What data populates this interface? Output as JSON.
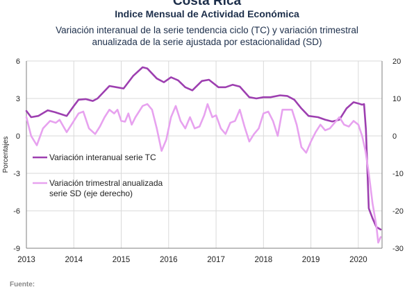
{
  "header": {
    "top_title": "Costa Rica",
    "title": "Indice Mensual de  Actividad Económica",
    "subtitle_line1": "Variación interanual de la serie tendencia ciclo (TC) y variación trimestral",
    "subtitle_line2": "anualizada de la serie ajustada por estacionalidad (SD)"
  },
  "footer": {
    "source_label": "Fuente:"
  },
  "colors": {
    "series1": "#9d3fb0",
    "series2": "#e7a2ef",
    "grid": "#d9d9d9",
    "axis": "#7f7f7f"
  },
  "chart_data": {
    "type": "line",
    "ylabel": "Porcentajes",
    "ylim": [
      -9,
      6
    ],
    "ylim_right": [
      -30,
      20
    ],
    "yticks": [
      6,
      3,
      0,
      -3,
      -6,
      -9
    ],
    "yticks_right": [
      20,
      10,
      0,
      -10,
      -20,
      -30
    ],
    "xlim": [
      2013.0,
      2020.5
    ],
    "xticks": [
      "2013",
      "2014",
      "2015",
      "2016",
      "2017",
      "2018",
      "2019",
      "2020"
    ],
    "grid": true,
    "legend_position": "left-center",
    "series": [
      {
        "name": "Variación interanual serie TC",
        "axis": "left",
        "points": [
          [
            2013.0,
            2.0
          ],
          [
            2013.1,
            1.5
          ],
          [
            2013.25,
            1.6
          ],
          [
            2013.45,
            2.05
          ],
          [
            2013.6,
            1.9
          ],
          [
            2013.85,
            1.6
          ],
          [
            2014.0,
            2.4
          ],
          [
            2014.1,
            2.9
          ],
          [
            2014.25,
            2.95
          ],
          [
            2014.4,
            2.8
          ],
          [
            2014.5,
            3.0
          ],
          [
            2014.75,
            4.0
          ],
          [
            2014.9,
            3.9
          ],
          [
            2015.05,
            3.8
          ],
          [
            2015.25,
            4.8
          ],
          [
            2015.45,
            5.5
          ],
          [
            2015.55,
            5.4
          ],
          [
            2015.75,
            4.6
          ],
          [
            2015.9,
            4.3
          ],
          [
            2016.05,
            4.7
          ],
          [
            2016.2,
            4.45
          ],
          [
            2016.35,
            3.9
          ],
          [
            2016.5,
            3.65
          ],
          [
            2016.7,
            4.4
          ],
          [
            2016.85,
            4.5
          ],
          [
            2017.05,
            3.9
          ],
          [
            2017.2,
            3.9
          ],
          [
            2017.35,
            4.1
          ],
          [
            2017.5,
            3.95
          ],
          [
            2017.7,
            3.1
          ],
          [
            2017.85,
            3.0
          ],
          [
            2018.0,
            3.1
          ],
          [
            2018.15,
            3.1
          ],
          [
            2018.35,
            3.25
          ],
          [
            2018.5,
            3.2
          ],
          [
            2018.65,
            2.9
          ],
          [
            2018.8,
            2.2
          ],
          [
            2018.95,
            1.6
          ],
          [
            2019.15,
            1.5
          ],
          [
            2019.3,
            1.3
          ],
          [
            2019.45,
            1.15
          ],
          [
            2019.6,
            1.3
          ],
          [
            2019.75,
            2.2
          ],
          [
            2019.9,
            2.7
          ],
          [
            2020.0,
            2.6
          ],
          [
            2020.08,
            2.5
          ],
          [
            2020.12,
            2.55
          ],
          [
            2020.16,
            0.5
          ],
          [
            2020.22,
            -5.8
          ],
          [
            2020.3,
            -6.6
          ],
          [
            2020.38,
            -7.3
          ],
          [
            2020.47,
            -7.5
          ]
        ]
      },
      {
        "name": "Variación trimestral anualizada serie SD (eje derecho)",
        "axis": "right",
        "points": [
          [
            2013.0,
            5.0
          ],
          [
            2013.1,
            0.0
          ],
          [
            2013.22,
            -2.5
          ],
          [
            2013.35,
            2.0
          ],
          [
            2013.5,
            4.0
          ],
          [
            2013.62,
            3.5
          ],
          [
            2013.7,
            4.3
          ],
          [
            2013.85,
            1.0
          ],
          [
            2013.95,
            3.0
          ],
          [
            2014.1,
            6.0
          ],
          [
            2014.2,
            6.5
          ],
          [
            2014.32,
            2.0
          ],
          [
            2014.45,
            0.5
          ],
          [
            2014.55,
            2.5
          ],
          [
            2014.65,
            5.0
          ],
          [
            2014.75,
            7.0
          ],
          [
            2014.85,
            6.0
          ],
          [
            2014.92,
            7.0
          ],
          [
            2015.0,
            4.0
          ],
          [
            2015.08,
            3.8
          ],
          [
            2015.15,
            6.0
          ],
          [
            2015.22,
            3.0
          ],
          [
            2015.3,
            5.0
          ],
          [
            2015.45,
            8.0
          ],
          [
            2015.55,
            8.5
          ],
          [
            2015.65,
            7.0
          ],
          [
            2015.75,
            2.0
          ],
          [
            2015.85,
            -4.0
          ],
          [
            2015.95,
            -1.0
          ],
          [
            2016.05,
            5.0
          ],
          [
            2016.15,
            8.0
          ],
          [
            2016.25,
            4.0
          ],
          [
            2016.35,
            2.0
          ],
          [
            2016.45,
            5.0
          ],
          [
            2016.55,
            2.0
          ],
          [
            2016.65,
            2.5
          ],
          [
            2016.75,
            5.5
          ],
          [
            2016.82,
            8.5
          ],
          [
            2016.92,
            5.0
          ],
          [
            2017.0,
            5.5
          ],
          [
            2017.1,
            2.0
          ],
          [
            2017.2,
            0.5
          ],
          [
            2017.3,
            3.5
          ],
          [
            2017.4,
            4.0
          ],
          [
            2017.5,
            7.0
          ],
          [
            2017.6,
            2.5
          ],
          [
            2017.7,
            -1.5
          ],
          [
            2017.8,
            0.5
          ],
          [
            2017.9,
            2.0
          ],
          [
            2018.0,
            6.0
          ],
          [
            2018.1,
            6.5
          ],
          [
            2018.2,
            4.0
          ],
          [
            2018.3,
            0.0
          ],
          [
            2018.4,
            7.0
          ],
          [
            2018.5,
            7.0
          ],
          [
            2018.6,
            7.0
          ],
          [
            2018.7,
            3.0
          ],
          [
            2018.8,
            -3.0
          ],
          [
            2018.9,
            -4.5
          ],
          [
            2019.0,
            -1.5
          ],
          [
            2019.1,
            1.0
          ],
          [
            2019.2,
            3.0
          ],
          [
            2019.3,
            1.5
          ],
          [
            2019.4,
            2.0
          ],
          [
            2019.5,
            3.5
          ],
          [
            2019.6,
            5.0
          ],
          [
            2019.7,
            3.0
          ],
          [
            2019.8,
            2.5
          ],
          [
            2019.9,
            4.0
          ],
          [
            2020.0,
            3.0
          ],
          [
            2020.08,
            0.0
          ],
          [
            2020.15,
            -4.0
          ],
          [
            2020.22,
            -10.0
          ],
          [
            2020.3,
            -18.0
          ],
          [
            2020.38,
            -24.0
          ],
          [
            2020.42,
            -28.5
          ],
          [
            2020.47,
            -27.0
          ]
        ]
      }
    ]
  }
}
